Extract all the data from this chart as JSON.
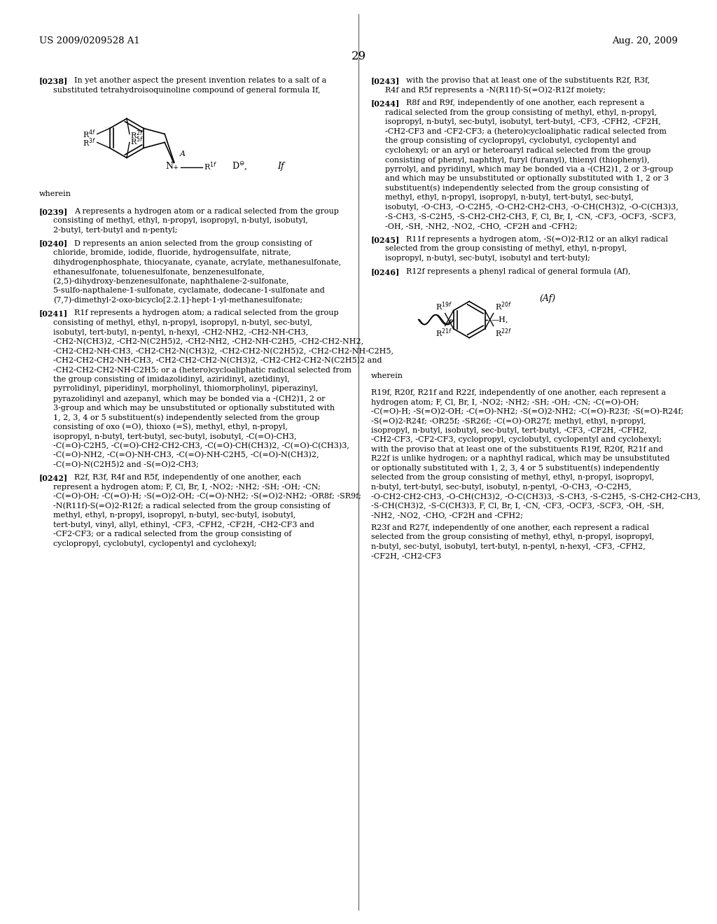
{
  "background_color": "#ffffff",
  "page_number": "29",
  "header_left": "US 2009/0209528 A1",
  "header_right": "Aug. 20, 2009",
  "left_paragraphs": [
    {
      "tag": "[0238]",
      "text": "In yet another aspect the present invention relates to a salt of a substituted tetrahydroisoquinoline compound of general formula If,"
    },
    {
      "tag": "STRUCTURE_IF",
      "text": ""
    },
    {
      "tag": "wherein",
      "text": "wherein"
    },
    {
      "tag": "[0239]",
      "text": "A represents a hydrogen atom or a radical selected from the group consisting of methyl, ethyl, n-propyl, isopropyl, n-butyl, isobutyl, 2-butyl, tert-butyl and n-pentyl;"
    },
    {
      "tag": "[0240]",
      "text": "D represents an anion selected from the group consisting of chloride, bromide, iodide, fluoride, hydrogensulfate, nitrate, dihydrogenphosphate, thiocyanate, cyanate, acrylate, methanesulfonate, ethanesulfonate, toluenesulfonate, benzenesulfonate, (2,5)-dihydroxy-benzenesulfonate, naphthalene-2-sulfonate, 5-sulfo-napthalene-1-sulfonate, cyclamate, dodecane-1-sulfonate and (7,7)-dimethyl-2-oxo-bicyclo[2.2.1]-hept-1-yl-methanesulfonate;"
    },
    {
      "tag": "[0241]",
      "text": "R1f represents a hydrogen atom; a radical selected from the group consisting of methyl, ethyl, n-propyl, isopropyl, n-butyl, sec-butyl, isobutyl, tert-butyl, n-pentyl, n-hexyl, -CH2-NH2, -CH2-NH-CH3, -CH2-N(CH3)2, -CH2-N(C2H5)2, -CH2-NH2, -CH2-NH-C2H5, -CH2-CH2-NH2, -CH2-CH2-NH-CH3, -CH2-CH2-N(CH3)2, -CH2-CH2-N(C2H5)2, -CH2-CH2-NH-C2H5, -CH2-CH2-CH2-NH-CH3, -CH2-CH2-CH2-N(CH3)2, -CH2-CH2-CH2-N(C2H5)2 and -CH2-CH2-CH2-NH-C2H5; or a (hetero)cycloaliphatic radical selected from the group consisting of imidazolidinyl, aziridinyl, azetidinyl, pyrrolidinyl, piperidinyl, morpholinyl, thiomorpholinyl, piperazinyl, pyrazolidinyl and azepanyl, which may be bonded via a -(CH2)1, 2 or 3-group and which may be unsubstituted or optionally substituted with 1, 2, 3, 4 or 5 substituent(s) independently selected from the group consisting of oxo (=O), thioxo (=S), methyl, ethyl, n-propyl, isopropyl, n-butyl, tert-butyl, sec-butyl, isobutyl, -C(=O)-CH3, -C(=O)-C2H5, -C(=O)-CH2-CH2-CH3, -C(=O)-CH(CH3)2, -C(=O)-C(CH3)3, -C(=O)-NH2, -C(=O)-NH-CH3, -C(=O)-NH-C2H5, -C(=O)-N(CH3)2, -C(=O)-N(C2H5)2 and -S(=O)2-CH3;"
    },
    {
      "tag": "[0242]",
      "text": "R2f, R3f, R4f and R5f, independently of one another, each represent a hydrogen atom; F, Cl, Br, I, -NO2; -NH2; -SH; -OH; -CN; -C(=O)-OH; -C(=O)-H; -S(=O)2-OH; -C(=O)-NH2; -S(=O)2-NH2; -OR8f; -SR9f; -N(R11f)-S(=O)2-R12f; a radical selected from the group consisting of methyl, ethyl, n-propyl, isopropyl, n-butyl, sec-butyl, isobutyl, tert-butyl, vinyl, allyl, ethinyl, -CF3, -CFH2, -CF2H, -CH2-CF3 and -CF2-CF3; or a radical selected from the group consisting of cyclopropyl, cyclobutyl, cyclopentyl and cyclohexyl;"
    }
  ],
  "right_paragraphs": [
    {
      "tag": "[0243]",
      "text": "with the proviso that at least one of the substituents R2f, R3f, R4f and R5f represents a -N(R11f)-S(=O)2-R12f moiety;"
    },
    {
      "tag": "[0244]",
      "text": "R8f and R9f, independently of one another, each represent a radical selected from the group consisting of methyl, ethyl, n-propyl, isopropyl, n-butyl, sec-butyl, isobutyl, tert-butyl, -CF3, -CFH2, -CF2H, -CH2-CF3 and -CF2-CF3; a (hetero)cycloaliphatic radical selected from the group consisting of cyclopropyl, cyclobutyl, cyclopentyl and cyclohexyl; or an aryl or heteroaryl radical selected from the group consisting of phenyl, naphthyl, furyl (furanyl), thienyl (thiophenyl), pyrrolyl, and pyridinyl, which may be bonded via a -(CH2)1, 2 or 3-group and which may be unsubstituted or optionally substituted with 1, 2 or 3 substituent(s) independently selected from the group consisting of methyl, ethyl, n-propyl, isopropyl, n-butyl, tert-butyl, sec-butyl, isobutyl, -O-CH3, -O-C2H5, -O-CH2-CH2-CH3, -O-CH(CH3)2, -O-C(CH3)3, -S-CH3, -S-C2H5, -S-CH2-CH2-CH3, F, Cl, Br, I, -CN, -CF3, -OCF3, -SCF3, -OH, -SH, -NH2, -NO2, -CHO, -CF2H and -CFH2;"
    },
    {
      "tag": "[0245]",
      "text": "R11f represents a hydrogen atom, -S(=O)2-R12 or an alkyl radical selected from the group consisting of methyl, ethyl, n-propyl, isopropyl, n-butyl, sec-butyl, isobutyl and tert-butyl;"
    },
    {
      "tag": "[0246]",
      "text": "R12f represents a phenyl radical of general formula (Af),"
    },
    {
      "tag": "STRUCTURE_AF",
      "text": ""
    },
    {
      "tag": "wherein",
      "text": "wherein"
    },
    {
      "tag": "plain",
      "text": "R19f, R20f, R21f and R22f, independently of one another, each represent a hydrogen atom; F, Cl, Br, I, -NO2; -NH2; -SH; -OH; -CN; -C(=O)-OH; -C(=O)-H; -S(=O)2-OH; -C(=O)-NH2; -S(=O)2-NH2; -C(=O)-R23f; -S(=O)-R24f; -S(=O)2-R24f; -OR25f; -SR26f; -C(=O)-OR27f; methyl, ethyl, n-propyl, isopropyl, n-butyl, isobutyl, sec-butyl, tert-butyl, -CF3, -CF2H, -CFH2, -CH2-CF3, -CF2-CF3, cyclopropyl, cyclobutyl, cyclopentyl and cyclohexyl; with the proviso that at least one of the substituents R19f, R20f, R21f and R22f is unlike hydrogen; or a naphthyl radical, which may be unsubstituted or optionally substituted with 1, 2, 3, 4 or 5 substituent(s) independently selected from the group consisting of methyl, ethyl, n-propyl, isopropyl, n-butyl, tert-butyl, sec-butyl, isobutyl, n-pentyl, -O-CH3, -O-C2H5, -O-CH2-CH2-CH3, -O-CH(CH3)2, -O-C(CH3)3, -S-CH3, -S-C2H5, -S-CH2-CH2-CH3, -S-CH(CH3)2, -S-C(CH3)3, F, Cl, Br, I, -CN, -CF3, -OCF3, -SCF3, -OH, -SH, -NH2, -NO2, -CHO, -CF2H and -CFH2;"
    },
    {
      "tag": "plain",
      "text": "R23f and R27f, independently of one another, each represent a radical selected from the group consisting of methyl, ethyl, n-propyl, isopropyl, n-butyl, sec-butyl, isobutyl, tert-butyl, n-pentyl, n-hexyl, -CF3, -CFH2, -CF2H, -CH2-CF3"
    }
  ]
}
